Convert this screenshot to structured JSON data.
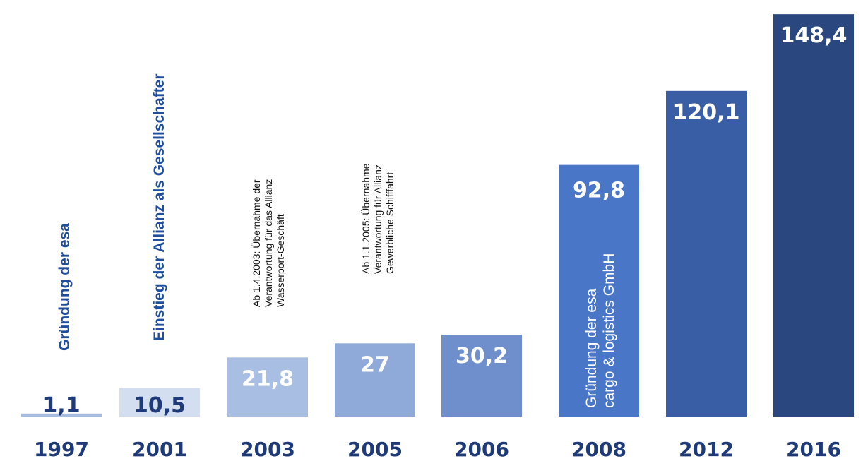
{
  "chart_data": {
    "type": "bar",
    "categories": [
      "1997",
      "2001",
      "2003",
      "2005",
      "2006",
      "2008",
      "2012",
      "2016"
    ],
    "values": [
      1.1,
      10.5,
      21.8,
      27,
      30.2,
      92.8,
      120.1,
      148.4
    ],
    "value_labels": [
      "1,1",
      "10,5",
      "21,8",
      "27",
      "30,2",
      "92,8",
      "120,1",
      "148,4"
    ],
    "bar_colors": [
      "#a7bde0",
      "#d3def1",
      "#a8bfe3",
      "#8fa9d8",
      "#6e8fcb",
      "#4a76c7",
      "#3a5ea6",
      "#2b477f"
    ],
    "value_label_colors": [
      "#1f3a78",
      "#1f3a78",
      "#ffffff",
      "#ffffff",
      "#ffffff",
      "#ffffff",
      "#ffffff",
      "#ffffff"
    ],
    "annotations": [
      {
        "category": "1997",
        "style": "blue",
        "lines": [
          "Gründung der esa"
        ]
      },
      {
        "category": "2001",
        "style": "blue",
        "lines": [
          "Einstieg der Allianz als Gesellschafter"
        ]
      },
      {
        "category": "2003",
        "style": "black",
        "lines": [
          "Ab 1.4.2003: Übernahme der",
          "Verantwortung für das Allianz",
          "Wasserport-Geschäft"
        ]
      },
      {
        "category": "2005",
        "style": "black",
        "lines": [
          "Ab 1.1.2005: Übernahme",
          "Verantwortung für Allianz",
          "Gewerbliche Schifffahrt"
        ]
      },
      {
        "category": "2008",
        "style": "white",
        "lines": [
          "Gründung der esa",
          "cargo & logistics GmbH"
        ]
      }
    ],
    "ylim": [
      0,
      150
    ],
    "title": "",
    "xlabel": "",
    "ylabel": "",
    "grid": false,
    "legend": "none"
  }
}
